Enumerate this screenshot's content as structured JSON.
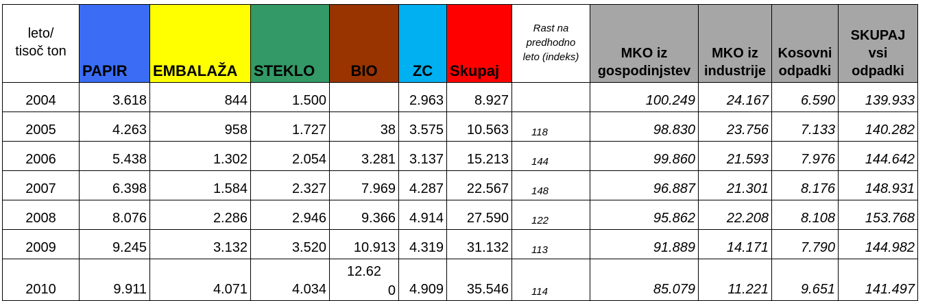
{
  "header": {
    "year_label": [
      "leto/",
      "tisoč ton"
    ],
    "columns": [
      {
        "label": "PAPIR",
        "bg": "#3a6cf5"
      },
      {
        "label": "EMBALAŽA",
        "bg": "#ffff00"
      },
      {
        "label": "STEKLO",
        "bg": "#339966"
      },
      {
        "label": "BIO",
        "bg": "#993300"
      },
      {
        "label": "ZC",
        "bg": "#00b0f0"
      },
      {
        "label": "Skupaj",
        "bg": "#ff0000"
      }
    ],
    "rast_label": [
      "Rast na",
      "predhodno",
      "leto (indeks)"
    ],
    "gray_columns": [
      [
        "MKO iz",
        "gospodinjstev"
      ],
      [
        "MKO iz",
        "industrije"
      ],
      [
        "Kosovni",
        "odpadki"
      ],
      [
        "SKUPAJ",
        "vsi",
        "odpadki"
      ]
    ]
  },
  "rows": [
    {
      "year": "2004",
      "papir": "3.618",
      "embalaza": "844",
      "steklo": "1.500",
      "bio": "",
      "zc": "2.963",
      "skupaj": "8.927",
      "rast": "",
      "mko_gosp": "100.249",
      "mko_ind": "24.167",
      "kosovni": "6.590",
      "skupaj_vsi": "139.933"
    },
    {
      "year": "2005",
      "papir": "4.263",
      "embalaza": "958",
      "steklo": "1.727",
      "bio": "38",
      "zc": "3.575",
      "skupaj": "10.563",
      "rast": "118",
      "mko_gosp": "98.830",
      "mko_ind": "23.756",
      "kosovni": "7.133",
      "skupaj_vsi": "140.282"
    },
    {
      "year": "2006",
      "papir": "5.438",
      "embalaza": "1.302",
      "steklo": "2.054",
      "bio": "3.281",
      "zc": "3.137",
      "skupaj": "15.213",
      "rast": "144",
      "mko_gosp": "99.860",
      "mko_ind": "21.593",
      "kosovni": "7.976",
      "skupaj_vsi": "144.642"
    },
    {
      "year": "2007",
      "papir": "6.398",
      "embalaza": "1.584",
      "steklo": "2.327",
      "bio": "7.969",
      "zc": "4.287",
      "skupaj": "22.567",
      "rast": "148",
      "mko_gosp": "96.887",
      "mko_ind": "21.301",
      "kosovni": "8.176",
      "skupaj_vsi": "148.931"
    },
    {
      "year": "2008",
      "papir": "8.076",
      "embalaza": "2.286",
      "steklo": "2.946",
      "bio": "9.366",
      "zc": "4.914",
      "skupaj": "27.590",
      "rast": "122",
      "mko_gosp": "95.862",
      "mko_ind": "22.208",
      "kosovni": "8.108",
      "skupaj_vsi": "153.768"
    },
    {
      "year": "2009",
      "papir": "9.245",
      "embalaza": "3.132",
      "steklo": "3.520",
      "bio": "10.913",
      "zc": "4.319",
      "skupaj": "31.132",
      "rast": "113",
      "mko_gosp": "91.889",
      "mko_ind": "14.171",
      "kosovni": "7.790",
      "skupaj_vsi": "144.982"
    },
    {
      "year": "2010",
      "papir": "9.911",
      "embalaza": "4.071",
      "steklo": "4.034",
      "bio": [
        "12.62",
        "0"
      ],
      "zc": "4.909",
      "skupaj": "35.546",
      "rast": "114",
      "mko_gosp": "85.079",
      "mko_ind": "11.221",
      "kosovni": "9.651",
      "skupaj_vsi": "141.497"
    }
  ]
}
